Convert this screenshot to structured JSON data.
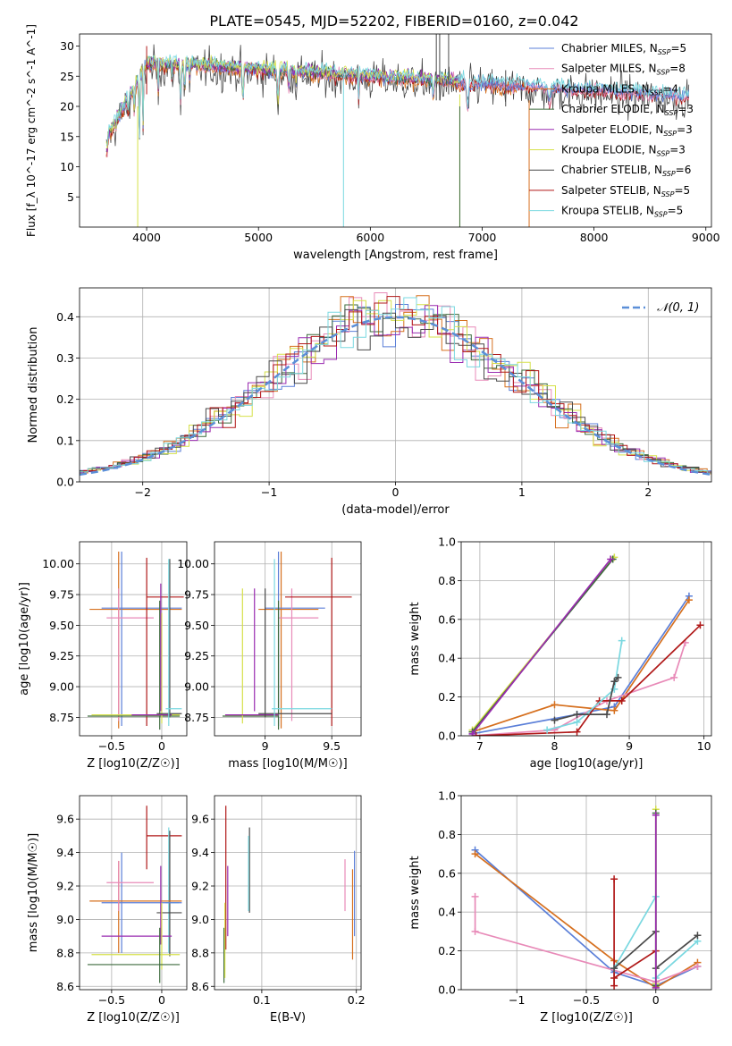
{
  "figure_title": "PLATE=0545, MJD=52202, FIBERID=0160, z=0.042",
  "colors": {
    "Chabrier MILES": "#5b7fd8",
    "Salpeter MILES": "#e88ab8",
    "Kroupa MILES": "#d6701f",
    "Chabrier ELODIE": "#3e6b3e",
    "Salpeter ELODIE": "#9a2bb0",
    "Kroupa ELODIE": "#d6e04a",
    "Chabrier STELIB": "#4a4a4a",
    "Salpeter STELIB": "#b01818",
    "Kroupa STELIB": "#7ad8e0"
  },
  "chart_data": [
    {
      "type": "line",
      "xlabel": "wavelength [Angstrom, rest frame]",
      "ylabel": "Flux [f_λ 10^-17 erg cm^-2 s^-1 A^-1]",
      "xlim": [
        3400,
        9050
      ],
      "ylim": [
        0,
        32
      ],
      "xticks": [
        4000,
        5000,
        6000,
        7000,
        8000,
        9000
      ],
      "yticks": [
        5,
        10,
        15,
        20,
        25,
        30
      ],
      "legend": [
        {
          "label": "Chabrier MILES, N",
          "sub": "SSP",
          "eq": "=5"
        },
        {
          "label": "Salpeter MILES, N",
          "sub": "SSP",
          "eq": "=8"
        },
        {
          "label": "Kroupa MILES, N",
          "sub": "SSP",
          "eq": "=4"
        },
        {
          "label": "Chabrier ELODIE, N",
          "sub": "SSP",
          "eq": "=3"
        },
        {
          "label": "Salpeter ELODIE, N",
          "sub": "SSP",
          "eq": "=3"
        },
        {
          "label": "Kroupa ELODIE, N",
          "sub": "SSP",
          "eq": "=3"
        },
        {
          "label": "Chabrier STELIB, N",
          "sub": "SSP",
          "eq": "=6"
        },
        {
          "label": "Salpeter STELIB, N",
          "sub": "SSP",
          "eq": "=5"
        },
        {
          "label": "Kroupa STELIB, N",
          "sub": "SSP",
          "eq": "=5"
        }
      ],
      "legend_position": "right",
      "grid": false
    },
    {
      "type": "histogram",
      "xlabel": "(data-model)/error",
      "ylabel": "Normed distribution",
      "xlim": [
        -2.5,
        2.5
      ],
      "ylim": [
        0,
        0.47
      ],
      "xticks": [
        -2,
        -1,
        0,
        1,
        2
      ],
      "yticks": [
        0.0,
        0.1,
        0.2,
        0.3,
        0.4
      ],
      "legend": "𝒩(0, 1)",
      "legend_position": "top-right",
      "grid": true
    },
    {
      "type": "scatter",
      "xlabel": "Z [log10(Z/Z☉)]",
      "ylabel": "age  [log10(age/yr)]",
      "xlim": [
        -0.82,
        0.25
      ],
      "ylim": [
        8.6,
        10.18
      ],
      "xticks": [
        -0.5,
        0.0
      ],
      "yticks": [
        8.75,
        9.0,
        9.25,
        9.5,
        9.75,
        10.0
      ],
      "grid": true
    },
    {
      "type": "scatter",
      "xlabel": "mass [log10(M/M☉)]",
      "ylabel": "",
      "xlim": [
        8.62,
        9.72
      ],
      "ylim": [
        8.6,
        10.18
      ],
      "xticks": [
        9.0,
        9.5
      ],
      "yticks": [
        8.75,
        9.0,
        9.25,
        9.5,
        9.75,
        10.0
      ],
      "grid": true
    },
    {
      "type": "line",
      "xlabel": "age  [log10(age/yr)]",
      "ylabel": "mass weight",
      "xlim": [
        6.75,
        10.1
      ],
      "ylim": [
        0,
        1.0
      ],
      "xticks": [
        7,
        8,
        9,
        10
      ],
      "yticks": [
        0.0,
        0.2,
        0.4,
        0.6,
        0.8,
        1.0
      ],
      "grid": true
    },
    {
      "type": "scatter",
      "xlabel": "Z [log10(Z/Z☉)]",
      "ylabel": "mass [log10(M/M☉)]",
      "xlim": [
        -0.82,
        0.25
      ],
      "ylim": [
        8.58,
        9.74
      ],
      "xticks": [
        -0.5,
        0.0
      ],
      "yticks": [
        8.6,
        8.8,
        9.0,
        9.2,
        9.4,
        9.6
      ],
      "grid": true
    },
    {
      "type": "scatter",
      "xlabel": "E(B-V)",
      "ylabel": "",
      "xlim": [
        0.05,
        0.205
      ],
      "ylim": [
        8.58,
        9.74
      ],
      "xticks": [
        0.1,
        0.2
      ],
      "yticks": [
        8.6,
        8.8,
        9.0,
        9.2,
        9.4,
        9.6
      ],
      "grid": true
    },
    {
      "type": "line",
      "xlabel": "Z [log10(Z/Z☉)]",
      "ylabel": "mass weight",
      "xlim": [
        -1.4,
        0.4
      ],
      "ylim": [
        0,
        1.0
      ],
      "xticks": [
        -1.0,
        -0.5,
        0.0
      ],
      "yticks": [
        0.0,
        0.2,
        0.4,
        0.6,
        0.8,
        1.0
      ],
      "grid": true
    }
  ]
}
